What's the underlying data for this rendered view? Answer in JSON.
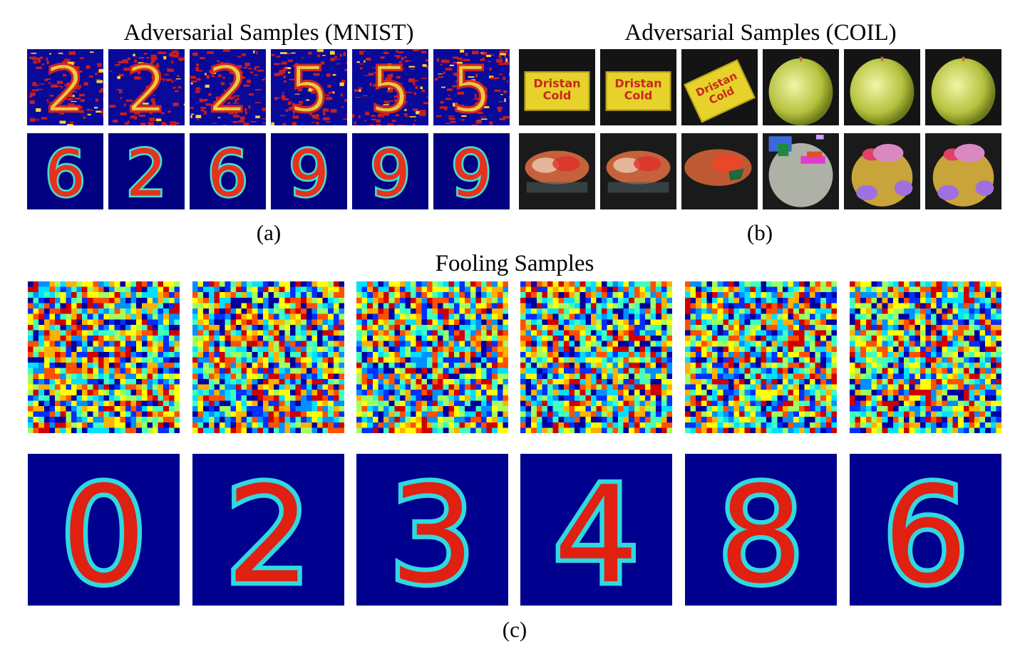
{
  "figure": {
    "panel_a": {
      "title": "Adversarial Samples (MNIST)",
      "caption": "(a)",
      "row1_digits": [
        "2",
        "2",
        "2",
        "5",
        "5",
        "5"
      ],
      "row2_digits": [
        "6",
        "2",
        "6",
        "9",
        "9",
        "9"
      ]
    },
    "panel_b": {
      "title": "Adversarial Samples (COIL)",
      "caption": "(b)",
      "box_text": [
        "Dristan",
        "Cold"
      ]
    },
    "panel_c": {
      "title": "Fooling Samples",
      "caption": "(c)",
      "row2_digits": [
        "0",
        "2",
        "3",
        "4",
        "8",
        "6"
      ]
    }
  },
  "colors": {
    "jet_background": "#00008f",
    "mnist_background": "#000080",
    "coil_background": "#141414",
    "box_yellow": "#e6d22a",
    "box_red": "#c8281e"
  }
}
